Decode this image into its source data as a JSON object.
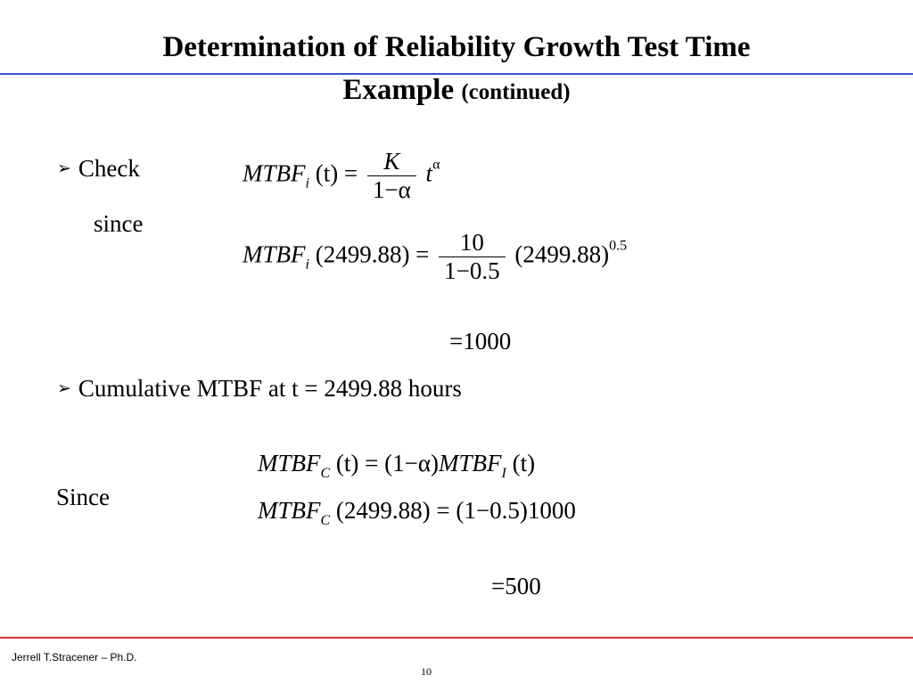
{
  "slide": {
    "title_line1": "Determination of Reliability Growth Test Time",
    "title_line2_main": "Example ",
    "title_line2_sub": "(continued)"
  },
  "bullets": {
    "check": "Check",
    "since_lower": "since",
    "cumulative": "Cumulative MTBF at t = 2499.88 hours",
    "since_upper": "Since"
  },
  "equations": {
    "eq1": {
      "lhs": "MTBF",
      "lhs_sub": "i",
      "arg": "(t) =",
      "num": "K",
      "den": "1−α",
      "rhs": "t",
      "rhs_sup": "α"
    },
    "eq2": {
      "lhs": "MTBF",
      "lhs_sub": "i",
      "arg": "(2499.88) =",
      "num": "10",
      "den": "1−0.5",
      "rhs": "(2499.88)",
      "rhs_sup": "0.5"
    },
    "eq2_result": "=1000",
    "eq3": {
      "lhs": "MTBF",
      "lhs_sub": "C",
      "rhs": "(t) = (1−α)",
      "mid": "MTBF",
      "mid_sub": "I",
      "tail": "(t)"
    },
    "eq4": {
      "lhs": "MTBF",
      "lhs_sub": "C",
      "rhs": "(2499.88) = (1−0.5)1000"
    },
    "eq4_result": "=500"
  },
  "footer": {
    "author": "Jerrell T.Stracener – Ph.D.",
    "page": "10"
  },
  "colors": {
    "top_rule": "#3355cc",
    "bottom_rule": "#dd3333"
  }
}
